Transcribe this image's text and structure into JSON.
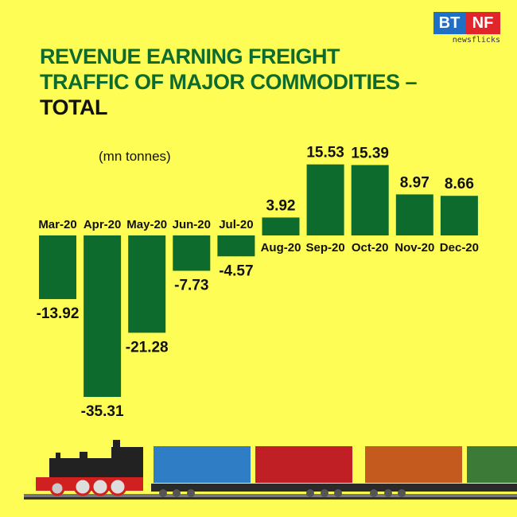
{
  "title_line1": "REVENUE EARNING FREIGHT",
  "title_line2": "TRAFFIC OF MAJOR COMMODITIES –",
  "title_line3": "TOTAL",
  "logo": {
    "left": "BT",
    "right": "NF",
    "tagline": "newsflicks",
    "colors": {
      "left": "#1f6fc6",
      "right": "#e0262b"
    }
  },
  "chart_data": {
    "type": "bar",
    "unit_label": "(mn tonnes)",
    "categories": [
      "Mar-20",
      "Apr-20",
      "May-20",
      "Jun-20",
      "Jul-20",
      "Aug-20",
      "Sep-20",
      "Oct-20",
      "Nov-20",
      "Dec-20"
    ],
    "values": [
      -13.92,
      -35.31,
      -21.28,
      -7.73,
      -4.57,
      3.92,
      15.53,
      15.39,
      8.97,
      8.66
    ],
    "value_labels": [
      "-13.92",
      "-35.31",
      "-21.28",
      "-7.73",
      "-4.57",
      "3.92",
      "15.53",
      "15.39",
      "8.97",
      "8.66"
    ],
    "bar_color": "#0d6b2e",
    "background": "#fdfd55",
    "grid": false
  }
}
